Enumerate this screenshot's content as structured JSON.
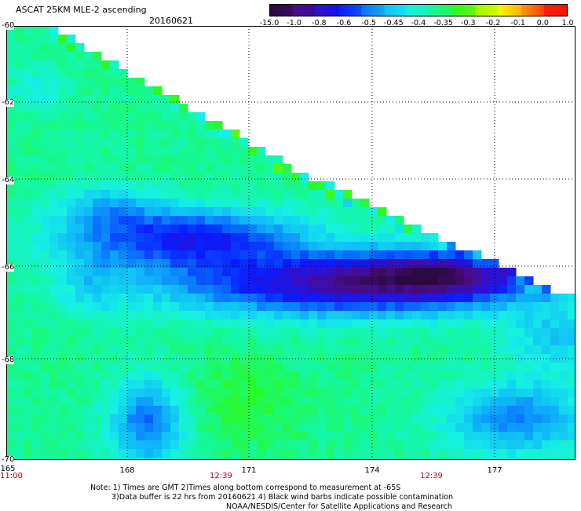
{
  "header": {
    "title": "ASCAT 25KM MLE-2 ascending",
    "date": "20160621"
  },
  "colorbar": {
    "labels": [
      "-15.0",
      "-1.0",
      "-0.8",
      "-0.6",
      "-0.5",
      "-0.45",
      "-0.4",
      "-0.35",
      "-0.3",
      "-0.2",
      "-0.1",
      "0.0",
      "1.0"
    ],
    "colors": [
      "#2a0a40",
      "#4a0c86",
      "#3a18c8",
      "#0a1cff",
      "#0a72ff",
      "#10bff6",
      "#16f0e6",
      "#16f89a",
      "#2afa20",
      "#9afa00",
      "#f8f800",
      "#ff9a00",
      "#ff2000"
    ]
  },
  "map": {
    "lat_labels": [
      "-60",
      "-62",
      "-64",
      "-66",
      "-68",
      "-70"
    ],
    "lon_labels": [
      "165",
      "168",
      "171",
      "174",
      "177"
    ],
    "time_labels": [
      "11:00",
      "12:39",
      "12:39"
    ]
  },
  "notes": {
    "line1": "Note: 1) Times are GMT 2)Times along bottom correspond to measurement at -65S",
    "line2": "3)Data buffer is 22 hrs from 20160621 4) Black wind barbs indicate possible contamination",
    "line3": "NOAA/NESDIS/Center for Satellite Applications and Research"
  }
}
